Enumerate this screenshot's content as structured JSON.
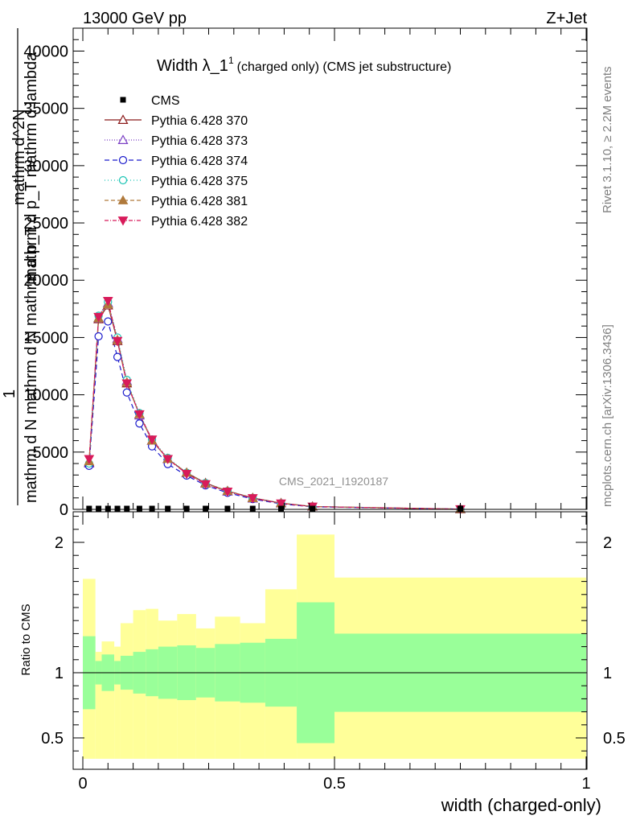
{
  "header": {
    "left": "13000 GeV pp",
    "right": "Z+Jet"
  },
  "title": {
    "main": "Width λ_1",
    "sup": "1",
    "sub": "(charged only) (CMS jet substructure)"
  },
  "side_labels": {
    "rivet": "Rivet 3.1.10, ≥ 2.2M events",
    "mcplots": "mcplots.cern.ch [arXiv:1306.3436]"
  },
  "watermark": "CMS_2021_I1920187",
  "axes": {
    "top_ylabel_line1": "1",
    "top_ylabel_line2": "mathrm d N mathrm d N mathrm d p_T",
    "top_ylabel_line3": "mathrm d^2N",
    "top_ylabel_line4": "mathrm d p_T mathrm d lambda",
    "bottom_ylabel": "Ratio to CMS",
    "xlabel": "width (charged-only)"
  },
  "colors": {
    "band_inner": "#99ff99",
    "band_outer": "#ffff99",
    "cms": "#000000",
    "s370": "#8b1a1a",
    "s373": "#7b3fc4",
    "s374": "#1a1acc",
    "s375": "#1ac4b4",
    "s381": "#b07a3c",
    "s382": "#d81b5a"
  },
  "chart_data": [
    {
      "type": "line",
      "panel": "main",
      "ylim": [
        0,
        42000
      ],
      "xlim": [
        -0.01,
        1.0
      ],
      "yticks": [
        0,
        5000,
        10000,
        15000,
        20000,
        25000,
        30000,
        35000,
        40000
      ],
      "ytick_labels": [
        "0",
        "5000",
        "10000",
        "15000",
        "20000",
        "25000",
        "30000",
        "35000",
        "40000"
      ],
      "x": [
        0.0125,
        0.0313,
        0.05,
        0.0688,
        0.0875,
        0.1125,
        0.1375,
        0.1688,
        0.2063,
        0.2438,
        0.2875,
        0.3375,
        0.3938,
        0.4563,
        0.75
      ],
      "cms": [
        0,
        0,
        0,
        0,
        0,
        0,
        0,
        0,
        0,
        0,
        0,
        0,
        0,
        0,
        0
      ],
      "series": [
        {
          "name": "CMS",
          "key": "cms",
          "marker": "square",
          "dash": "none"
        },
        {
          "name": "Pythia 6.428 370",
          "key": "s370",
          "marker": "triangle-open",
          "dash": "none",
          "values": [
            4100,
            16600,
            17800,
            14700,
            11000,
            8300,
            6000,
            4400,
            3200,
            2300,
            1600,
            1000,
            550,
            250,
            20
          ]
        },
        {
          "name": "Pythia 6.428 373",
          "key": "s373",
          "marker": "triangle-open",
          "dash": "1,2",
          "values": [
            4000,
            16700,
            18000,
            14900,
            11200,
            8200,
            6000,
            4400,
            3150,
            2250,
            1550,
            950,
            520,
            240,
            20
          ]
        },
        {
          "name": "Pythia 6.428 374",
          "key": "s374",
          "marker": "circle-open",
          "dash": "6,4",
          "values": [
            3800,
            15100,
            16400,
            13300,
            10200,
            7500,
            5500,
            3950,
            2950,
            2100,
            1450,
            900,
            480,
            220,
            20
          ]
        },
        {
          "name": "Pythia 6.428 375",
          "key": "s375",
          "marker": "circle-open",
          "dash": "1,3",
          "values": [
            4000,
            16900,
            18100,
            15000,
            11300,
            8400,
            6100,
            4500,
            3200,
            2300,
            1600,
            1000,
            540,
            250,
            20
          ]
        },
        {
          "name": "Pythia 6.428 381",
          "key": "s381",
          "marker": "triangle-filled",
          "dash": "5,3",
          "values": [
            4200,
            16700,
            17900,
            14800,
            11100,
            8300,
            6000,
            4400,
            3200,
            2250,
            1600,
            980,
            530,
            245,
            20
          ]
        },
        {
          "name": "Pythia 6.428 382",
          "key": "s382",
          "marker": "triangle-down-filled",
          "dash": "5,2,1,2",
          "values": [
            4400,
            16800,
            18200,
            14700,
            11000,
            8300,
            6100,
            4400,
            3100,
            2200,
            1550,
            980,
            520,
            240,
            20
          ]
        }
      ]
    },
    {
      "type": "area",
      "panel": "ratio",
      "ylim": [
        0.35,
        2.3
      ],
      "xlim": [
        -0.01,
        1.0
      ],
      "yticks": [
        0.5,
        1,
        2
      ],
      "ytick_labels": [
        "0.5",
        "1",
        "2"
      ],
      "xticks": [
        0,
        0.5,
        1
      ],
      "xtick_labels": [
        "0",
        "0.5",
        "1"
      ],
      "bin_edges": [
        0.0,
        0.025,
        0.0375,
        0.0625,
        0.075,
        0.1,
        0.125,
        0.15,
        0.1875,
        0.225,
        0.2625,
        0.3125,
        0.3625,
        0.425,
        0.5,
        1.0
      ],
      "inner_low": [
        0.72,
        0.91,
        0.86,
        0.91,
        0.87,
        0.84,
        0.82,
        0.8,
        0.79,
        0.81,
        0.78,
        0.77,
        0.74,
        0.46,
        0.7
      ],
      "inner_high": [
        1.28,
        1.09,
        1.14,
        1.09,
        1.13,
        1.16,
        1.18,
        1.2,
        1.21,
        1.19,
        1.22,
        1.23,
        1.26,
        1.54,
        1.3
      ],
      "outer_low": [
        0.34,
        0.34,
        0.34,
        0.34,
        0.34,
        0.34,
        0.34,
        0.34,
        0.34,
        0.34,
        0.34,
        0.34,
        0.34,
        0.34,
        0.34
      ],
      "outer_high": [
        1.72,
        1.16,
        1.24,
        1.2,
        1.38,
        1.48,
        1.49,
        1.4,
        1.45,
        1.34,
        1.43,
        1.38,
        1.64,
        2.06,
        1.73
      ],
      "reference": 1
    }
  ]
}
